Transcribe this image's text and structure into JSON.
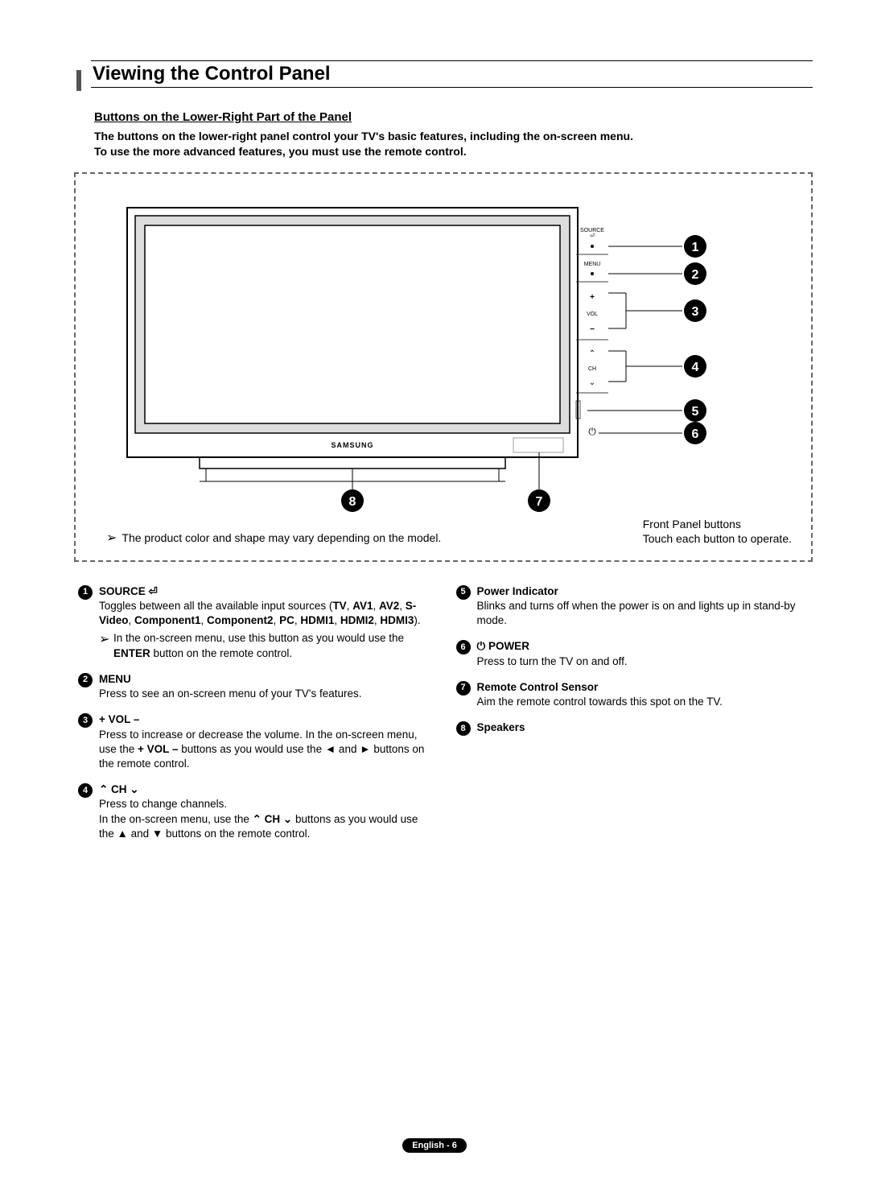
{
  "title": "Viewing the Control Panel",
  "subtitle": "Buttons on the Lower-Right Part of the Panel",
  "intro_line1": "The buttons on the lower-right panel control your TV's basic features, including the on-screen menu.",
  "intro_line2": "To use the more advanced features, you must use the remote control.",
  "diagram": {
    "panel_labels": {
      "source": "SOURCE",
      "menu": "MENU",
      "vol": "VOL",
      "ch": "CH"
    },
    "brand": "SAMSUNG",
    "callout_numbers": [
      "1",
      "2",
      "3",
      "4",
      "5",
      "6",
      "7",
      "8"
    ],
    "caption_left": "The product color and shape may vary depending on the model.",
    "caption_right_line1": "Front Panel buttons",
    "caption_right_line2": "Touch each button to operate."
  },
  "items_left": [
    {
      "num": "1",
      "title": "SOURCE ",
      "title_sym": "⏎",
      "body_html": "Toggles between all the available input sources (<b>TV</b>, <b>AV1</b>, <b>AV2</b>, <b>S-Video</b>, <b>Component1</b>, <b>Component2</b>, <b>PC</b>, <b>HDMI1</b>, <b>HDMI2</b>, <b>HDMI3</b>).",
      "note": "In the on-screen menu, use this button as you would use the <b>ENTER</b> button on the remote control."
    },
    {
      "num": "2",
      "title": "MENU",
      "body_html": "Press to see an on-screen menu of your TV's features."
    },
    {
      "num": "3",
      "title": "+ VOL –",
      "body_html": "Press to increase or decrease the volume. In the on-screen menu, use the <b>+ VOL –</b> buttons as you would use the ◄ and ► buttons on the remote control."
    },
    {
      "num": "4",
      "title": "⌃ CH ⌄",
      "body_html": "Press to change channels.<br>In the on-screen menu, use the <b>⌃ CH ⌄</b> buttons as you would use the ▲ and ▼ buttons on the remote control."
    }
  ],
  "items_right": [
    {
      "num": "5",
      "title": "Power Indicator",
      "body_html": "Blinks and turns off when the power is on and lights up in stand-by mode."
    },
    {
      "num": "6",
      "title_sym": "⏻ ",
      "title": "POWER",
      "body_html": "Press to turn the TV on and off."
    },
    {
      "num": "7",
      "title": "Remote Control Sensor",
      "body_html": "Aim the remote control towards this spot on the TV."
    },
    {
      "num": "8",
      "title": "Speakers",
      "body_html": ""
    }
  ],
  "footer": "English - 6",
  "colors": {
    "dash": "#666666",
    "text": "#000000",
    "circ_bg": "#000000",
    "circ_fg": "#ffffff"
  }
}
